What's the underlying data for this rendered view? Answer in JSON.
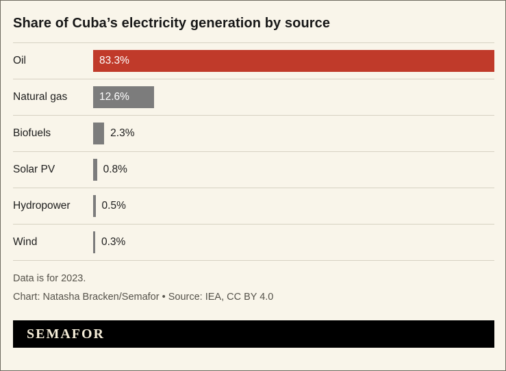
{
  "title": "Share of Cuba’s electricity generation by source",
  "footnote": "Data is for 2023.",
  "credit": "Chart: Natasha Bracken/Semafor • Source: IEA, CC BY 4.0",
  "brand": "SEMAFOR",
  "colors": {
    "background": "#f9f5ea",
    "accent_red": "#c03a2a",
    "bar_gray": "#7c7c7c",
    "separator": "#d6d1c2",
    "banner_bg": "#000000",
    "banner_text": "#f5edd8"
  },
  "chart_data": {
    "type": "bar",
    "orientation": "horizontal",
    "title": "Share of Cuba’s electricity generation by source",
    "categories": [
      "Oil",
      "Natural gas",
      "Biofuels",
      "Solar PV",
      "Hydropower",
      "Wind"
    ],
    "values": [
      83.3,
      12.6,
      2.3,
      0.8,
      0.5,
      0.3
    ],
    "value_labels": [
      "83.3%",
      "12.6%",
      "2.3%",
      "0.8%",
      "0.5%",
      "0.3%"
    ],
    "bar_colors": [
      "#c03a2a",
      "#7c7c7c",
      "#7c7c7c",
      "#7c7c7c",
      "#7c7c7c",
      "#7c7c7c"
    ],
    "value_label_inside": [
      true,
      true,
      false,
      false,
      false,
      false
    ],
    "xlim": [
      0,
      83.3
    ],
    "grid": false,
    "legend": "none",
    "xlabel": "",
    "ylabel": ""
  }
}
